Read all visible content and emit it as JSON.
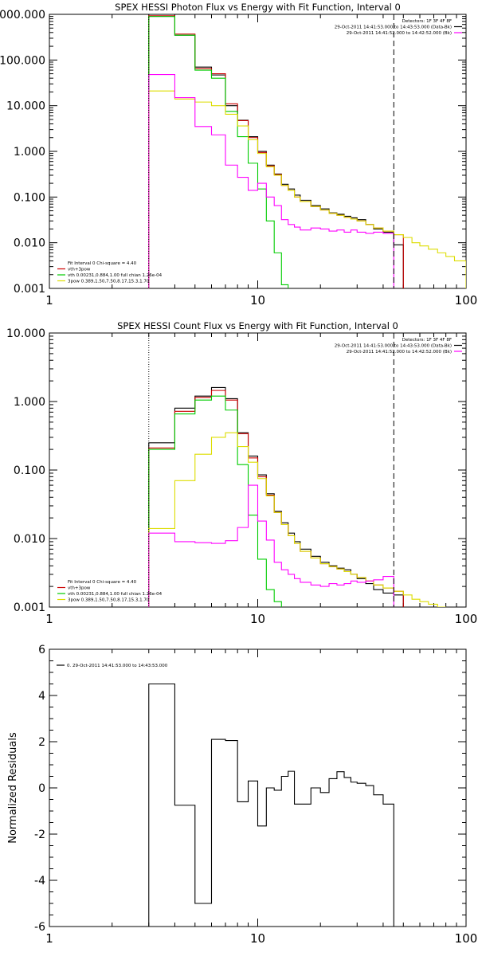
{
  "chart_data": [
    {
      "type": "line",
      "title": "SPEX HESSI Photon Flux vs Energy with Fit Function, Interval 0",
      "xscale": "log",
      "yscale": "log",
      "xlim": [
        1,
        100
      ],
      "ylim": [
        0.001,
        1000
      ],
      "xticks": [
        {
          "v": 1,
          "label": "1"
        },
        {
          "v": 10,
          "label": "10"
        },
        {
          "v": 100,
          "label": "100"
        }
      ],
      "yticks": [
        {
          "v": 0.001,
          "label": "0.001"
        },
        {
          "v": 0.01,
          "label": "0.010"
        },
        {
          "v": 0.1,
          "label": "0.100"
        },
        {
          "v": 1,
          "label": "1.000"
        },
        {
          "v": 10,
          "label": "10.000"
        },
        {
          "v": 100,
          "label": "100.000"
        },
        {
          "v": 1000,
          "label": "1000.000"
        }
      ],
      "vlines": [
        {
          "x": 3,
          "style": "dotted"
        },
        {
          "x": 45,
          "style": "dashed"
        }
      ],
      "legend_top": [
        {
          "text": "Detectors: 1F 3F 4F 8F",
          "color": ""
        },
        {
          "text": "29-Oct-2011 14:41:53.000 to 14:43:53.000 (Data-Bk)",
          "color": "#000000"
        },
        {
          "text": "29-Oct-2011 14:41:52.000 to 14:42:52.000 (Bk)",
          "color": "#ff00ff"
        }
      ],
      "legend_bottom": [
        {
          "text": "Fit Interval 0   Chi-square = 4.40",
          "color": ""
        },
        {
          "text": "vth+3pow",
          "color": "#cc0000"
        },
        {
          "text": "vth 0.00231,0.884,1.00   full chian 1.26e-04",
          "color": "#00cc00"
        },
        {
          "text": "3pow 0.389,1.50,7.50,8.17,15.3,1.70",
          "color": "#dddd00"
        }
      ],
      "edges": [
        3,
        4,
        5,
        6,
        7,
        8,
        9,
        10,
        11,
        12,
        13,
        14,
        15,
        16,
        18,
        20,
        22,
        24,
        26,
        28,
        30,
        33,
        36,
        40,
        45,
        50,
        55,
        60,
        66,
        73,
        80,
        88,
        100
      ],
      "series": [
        {
          "color": "#000000",
          "values": [
            900,
            350,
            70,
            47,
            10,
            4.8,
            2.1,
            1.0,
            0.5,
            0.32,
            0.19,
            0.15,
            0.11,
            0.085,
            0.065,
            0.055,
            0.045,
            0.042,
            0.038,
            0.035,
            0.032,
            0.025,
            0.02,
            0.017,
            0.009
          ]
        },
        {
          "color": "#cc0000",
          "values": [
            930,
            370,
            65,
            50,
            11,
            4.7,
            2.0,
            0.95,
            0.48,
            0.31,
            0.18,
            0.14,
            0.1,
            0.08,
            0.062,
            0.052,
            0.044,
            0.04,
            0.036,
            0.033,
            0.03,
            0.025,
            0.021,
            0.018,
            0.015
          ]
        },
        {
          "color": "#00cc00",
          "values": [
            900,
            350,
            60,
            40,
            7.5,
            2.1,
            0.55,
            0.15,
            0.03,
            0.006,
            0.0012,
            0.0002
          ]
        },
        {
          "color": "#dddd00",
          "values": [
            21,
            14,
            12,
            10,
            6.5,
            3.6,
            1.8,
            0.9,
            0.46,
            0.3,
            0.18,
            0.14,
            0.1,
            0.08,
            0.062,
            0.052,
            0.044,
            0.04,
            0.036,
            0.033,
            0.03,
            0.025,
            0.021,
            0.018,
            0.015,
            0.013,
            0.01,
            0.0085,
            0.0072,
            0.006,
            0.005,
            0.004
          ]
        },
        {
          "color": "#ff00ff",
          "values": [
            48,
            15,
            3.5,
            2.3,
            0.5,
            0.27,
            0.14,
            0.2,
            0.1,
            0.065,
            0.032,
            0.025,
            0.022,
            0.019,
            0.021,
            0.02,
            0.018,
            0.019,
            0.017,
            0.019,
            0.017,
            0.016,
            0.017,
            0.016
          ]
        }
      ]
    },
    {
      "type": "line",
      "title": "SPEX HESSI Count Flux vs Energy with Fit Function, Interval 0",
      "xscale": "log",
      "yscale": "log",
      "xlim": [
        1,
        100
      ],
      "ylim": [
        0.001,
        10
      ],
      "xticks": [
        {
          "v": 1,
          "label": "1"
        },
        {
          "v": 10,
          "label": "10"
        },
        {
          "v": 100,
          "label": "100"
        }
      ],
      "yticks": [
        {
          "v": 0.001,
          "label": "0.001"
        },
        {
          "v": 0.01,
          "label": "0.010"
        },
        {
          "v": 0.1,
          "label": "0.100"
        },
        {
          "v": 1,
          "label": "1.000"
        },
        {
          "v": 10,
          "label": "10.000"
        }
      ],
      "vlines": [
        {
          "x": 3,
          "style": "dotted"
        },
        {
          "x": 45,
          "style": "dashed"
        }
      ],
      "legend_top": [
        {
          "text": "Detectors: 1F 3F 4F 8F",
          "color": ""
        },
        {
          "text": "29-Oct-2011 14:41:53.000 to 14:43:53.000 (Data-Bk)",
          "color": "#000000"
        },
        {
          "text": "29-Oct-2011 14:41:52.000 to 14:42:52.000 (Bk)",
          "color": "#ff00ff"
        }
      ],
      "legend_bottom": [
        {
          "text": "Fit Interval 0   Chi-square = 4.40",
          "color": ""
        },
        {
          "text": "vth+3pow",
          "color": "#cc0000"
        },
        {
          "text": "vth 0.00231,0.884,1.00   full chian 1.26e-04",
          "color": "#00cc00"
        },
        {
          "text": "3pow 0.389,1.50,7.50,8.17,15.3,1.70",
          "color": "#dddd00"
        }
      ],
      "edges": [
        3,
        4,
        5,
        6,
        7,
        8,
        9,
        10,
        11,
        12,
        13,
        14,
        15,
        16,
        18,
        20,
        22,
        24,
        26,
        28,
        30,
        33,
        36,
        40,
        45,
        50,
        55,
        60,
        66,
        73,
        80,
        88,
        100
      ],
      "series": [
        {
          "color": "#000000",
          "values": [
            0.25,
            0.8,
            1.2,
            1.6,
            1.1,
            0.35,
            0.16,
            0.085,
            0.045,
            0.025,
            0.017,
            0.012,
            0.009,
            0.007,
            0.0055,
            0.0045,
            0.004,
            0.0037,
            0.0035,
            0.003,
            0.0026,
            0.0022,
            0.0018,
            0.0016,
            0.0015
          ]
        },
        {
          "color": "#cc0000",
          "values": [
            0.21,
            0.72,
            1.15,
            1.45,
            1.05,
            0.34,
            0.15,
            0.08,
            0.043,
            0.024,
            0.016,
            0.011,
            0.0085,
            0.0065,
            0.0052,
            0.0043,
            0.0039,
            0.0036,
            0.0033,
            0.003,
            0.0027,
            0.0024,
            0.0021,
            0.0019,
            0.0017
          ]
        },
        {
          "color": "#00cc00",
          "values": [
            0.2,
            0.66,
            1.05,
            1.2,
            0.75,
            0.12,
            0.022,
            0.005,
            0.0018,
            0.0012
          ]
        },
        {
          "color": "#dddd00",
          "values": [
            0.014,
            0.07,
            0.17,
            0.3,
            0.35,
            0.22,
            0.13,
            0.075,
            0.042,
            0.024,
            0.016,
            0.011,
            0.0085,
            0.0065,
            0.0052,
            0.0043,
            0.0039,
            0.0036,
            0.0033,
            0.003,
            0.0027,
            0.0024,
            0.0021,
            0.0019,
            0.0017,
            0.0015,
            0.0013,
            0.0012,
            0.0011,
            0.001
          ]
        },
        {
          "color": "#ff00ff",
          "values": [
            0.012,
            0.009,
            0.0087,
            0.0085,
            0.0093,
            0.0145,
            0.06,
            0.018,
            0.0095,
            0.0045,
            0.0035,
            0.003,
            0.0026,
            0.0023,
            0.0021,
            0.002,
            0.0022,
            0.0021,
            0.0022,
            0.0024,
            0.0023,
            0.0024,
            0.0025,
            0.0028
          ]
        }
      ]
    },
    {
      "type": "line",
      "title": "",
      "ylabel": "Normalized Residuals",
      "xscale": "log",
      "yscale": "linear",
      "xlim": [
        1,
        100
      ],
      "ylim": [
        -6,
        6
      ],
      "xticks": [
        {
          "v": 1,
          "label": "1"
        },
        {
          "v": 10,
          "label": "10"
        },
        {
          "v": 100,
          "label": "100"
        }
      ],
      "yticks": [
        {
          "v": -6,
          "label": "-6"
        },
        {
          "v": -4,
          "label": "-4"
        },
        {
          "v": -2,
          "label": "-2"
        },
        {
          "v": 0,
          "label": "0"
        },
        {
          "v": 2,
          "label": "2"
        },
        {
          "v": 4,
          "label": "4"
        },
        {
          "v": 6,
          "label": "6"
        }
      ],
      "vlines": [],
      "legend_top": [],
      "legend_left": [
        {
          "text": "0. 29-Oct-2011 14:41:53.000 to 14:43:53.000",
          "color": "#000000"
        }
      ],
      "legend_bottom": [],
      "edges": [
        3,
        4,
        5,
        6,
        7,
        8,
        9,
        10,
        11,
        12,
        13,
        14,
        15,
        16,
        18,
        20,
        22,
        24,
        26,
        28,
        30,
        33,
        36,
        40,
        45
      ],
      "series": [
        {
          "color": "#000000",
          "values": [
            4.5,
            -0.75,
            -5.0,
            2.1,
            2.05,
            -0.6,
            0.3,
            -1.65,
            0.0,
            -0.1,
            0.5,
            0.72,
            -0.7,
            -0.7,
            0.0,
            -0.2,
            0.4,
            0.7,
            0.45,
            0.25,
            0.2,
            0.1,
            -0.3,
            -0.7
          ]
        }
      ]
    }
  ]
}
